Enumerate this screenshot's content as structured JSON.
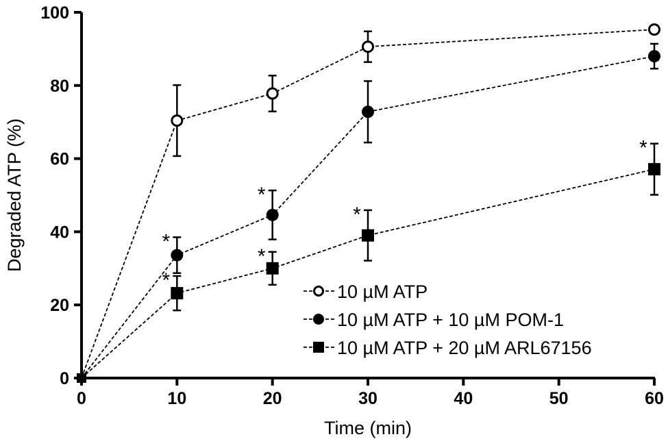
{
  "chart_data": {
    "type": "line",
    "xlabel": "Time (min)",
    "ylabel": "Degraded ATP (%)",
    "xlim": [
      0,
      60
    ],
    "ylim": [
      0,
      100
    ],
    "x_ticks": [
      "0",
      "10",
      "20",
      "30",
      "40",
      "50",
      "60"
    ],
    "y_ticks": [
      "0",
      "20",
      "40",
      "60",
      "80",
      "100"
    ],
    "x": [
      0,
      10,
      20,
      30,
      60
    ],
    "grid": false,
    "legend_position": "bottom-right",
    "series": [
      {
        "name": "10 µM ATP",
        "marker": "open-circle",
        "values": [
          0,
          70.4,
          77.8,
          90.6,
          95.3
        ],
        "errors": [
          0,
          9.7,
          4.9,
          4.2,
          0
        ],
        "significant": [
          false,
          false,
          false,
          false,
          false
        ]
      },
      {
        "name": "10 µM ATP + 10 µM POM-1",
        "marker": "filled-circle",
        "values": [
          0,
          33.6,
          44.6,
          72.8,
          88.0
        ],
        "errors": [
          0,
          4.9,
          6.7,
          8.4,
          3.4
        ],
        "significant": [
          false,
          true,
          true,
          false,
          false
        ]
      },
      {
        "name": "10 µM ATP + 20 µM ARL67156",
        "marker": "filled-square",
        "values": [
          0,
          23.2,
          30.0,
          39.0,
          57.1
        ],
        "errors": [
          0,
          4.7,
          4.5,
          6.9,
          7.0
        ],
        "significant": [
          false,
          true,
          true,
          true,
          true
        ]
      }
    ],
    "significance_mark": "*"
  }
}
